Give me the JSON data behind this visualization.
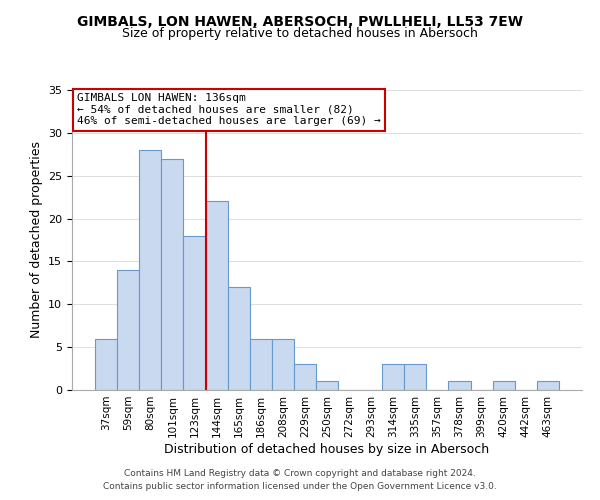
{
  "title": "GIMBALS, LON HAWEN, ABERSOCH, PWLLHELI, LL53 7EW",
  "subtitle": "Size of property relative to detached houses in Abersoch",
  "xlabel": "Distribution of detached houses by size in Abersoch",
  "ylabel": "Number of detached properties",
  "bar_labels": [
    "37sqm",
    "59sqm",
    "80sqm",
    "101sqm",
    "123sqm",
    "144sqm",
    "165sqm",
    "186sqm",
    "208sqm",
    "229sqm",
    "250sqm",
    "272sqm",
    "293sqm",
    "314sqm",
    "335sqm",
    "357sqm",
    "378sqm",
    "399sqm",
    "420sqm",
    "442sqm",
    "463sqm"
  ],
  "bar_values": [
    6,
    14,
    28,
    27,
    18,
    22,
    12,
    6,
    6,
    3,
    1,
    0,
    0,
    3,
    3,
    0,
    1,
    0,
    1,
    0,
    1
  ],
  "bar_color": "#c9d9f0",
  "bar_edge_color": "#6699cc",
  "vline_color": "#cc0000",
  "annotation_title": "GIMBALS LON HAWEN: 136sqm",
  "annotation_line1": "← 54% of detached houses are smaller (82)",
  "annotation_line2": "46% of semi-detached houses are larger (69) →",
  "ylim": [
    0,
    35
  ],
  "yticks": [
    0,
    5,
    10,
    15,
    20,
    25,
    30,
    35
  ],
  "footnote1": "Contains HM Land Registry data © Crown copyright and database right 2024.",
  "footnote2": "Contains public sector information licensed under the Open Government Licence v3.0.",
  "title_fontsize": 10,
  "subtitle_fontsize": 9,
  "annotation_box_color": "#ffffff",
  "annotation_box_edge": "#cc0000"
}
